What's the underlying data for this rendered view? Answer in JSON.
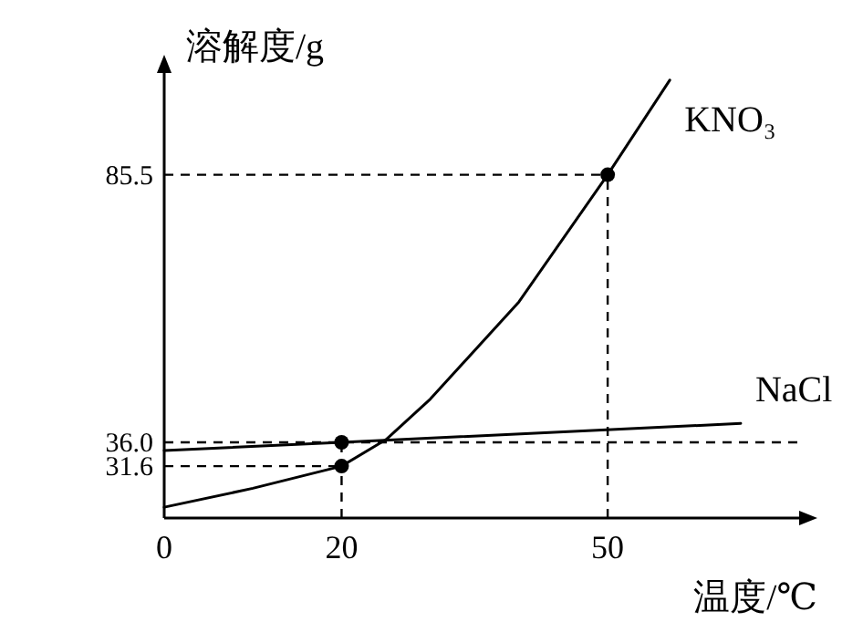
{
  "chart_data": {
    "type": "line",
    "xlabel": "温度/℃",
    "ylabel": "溶解度/g",
    "xlim": [
      0,
      72
    ],
    "ylim": [
      22,
      105
    ],
    "xticks": [
      0,
      20,
      50
    ],
    "yticks": [
      {
        "value": 31.6,
        "label": "31.6"
      },
      {
        "value": 36.0,
        "label": "36.0"
      },
      {
        "value": 85.5,
        "label": "85.5"
      }
    ],
    "series": [
      {
        "name": "KNO₃",
        "color": "#000000",
        "x": [
          0,
          10,
          20,
          25,
          30,
          40,
          50,
          57
        ],
        "values": [
          24,
          27.5,
          31.6,
          36.5,
          44,
          62,
          85.5,
          103
        ]
      },
      {
        "name": "NaCl",
        "color": "#000000",
        "x": [
          0,
          20,
          65
        ],
        "values": [
          34.5,
          36.0,
          39.5
        ]
      },
      {
        "type": "scatter",
        "color": "#000000",
        "marker": "circle",
        "x": [
          20,
          20,
          50
        ],
        "values": [
          36.0,
          31.6,
          85.5
        ]
      }
    ],
    "ref_lines": [
      {
        "axis": "y",
        "value": 36.0,
        "line_style": "dashed"
      },
      {
        "axis": "y",
        "value": 31.6,
        "line_style": "dashed"
      },
      {
        "axis": "y",
        "value": 85.5,
        "line_style": "dashed"
      },
      {
        "axis": "x",
        "value": 20,
        "line_style": "dashed"
      },
      {
        "axis": "x",
        "value": 50,
        "line_style": "dashed"
      }
    ]
  }
}
